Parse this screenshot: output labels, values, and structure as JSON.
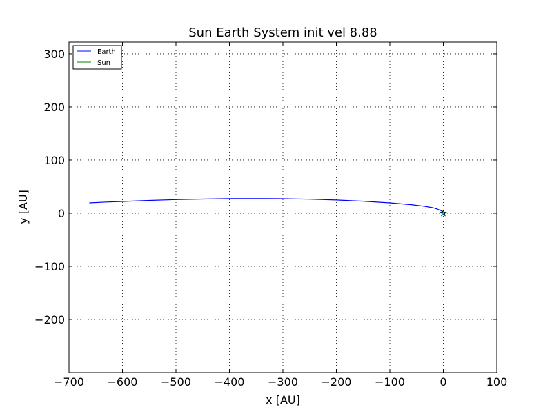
{
  "chart_data": {
    "type": "line",
    "title": "Sun Earth System init vel 8.88",
    "xlabel": "x [AU]",
    "ylabel": "y [AU]",
    "xlim": [
      -700,
      100
    ],
    "ylim": [
      -300,
      322
    ],
    "x_ticks": [
      -700,
      -600,
      -500,
      -400,
      -300,
      -200,
      -100,
      0,
      100
    ],
    "x_tick_labels": [
      "−700",
      "−600",
      "−500",
      "−400",
      "−300",
      "−200",
      "−100",
      "0",
      "100"
    ],
    "y_ticks": [
      -200,
      -100,
      0,
      100,
      200,
      300
    ],
    "y_tick_labels": [
      "−200",
      "−100",
      "0",
      "100",
      "200",
      "300"
    ],
    "grid": true,
    "legend_position": "top-left",
    "series": [
      {
        "name": "Earth",
        "color": "#0000ff",
        "x": [
          0,
          -5,
          -12,
          -20,
          -35,
          -60,
          -100,
          -150,
          -200,
          -250,
          -300,
          -350,
          -400,
          -450,
          -500,
          -550,
          -600,
          -630,
          -662
        ],
        "y": [
          2,
          5,
          8,
          10.5,
          13,
          16,
          19.5,
          22.5,
          24.8,
          26.3,
          27.2,
          27.5,
          27.3,
          26.6,
          25.5,
          24,
          22,
          21,
          19.5
        ]
      },
      {
        "name": "Sun",
        "color": "#008000",
        "marker": "star",
        "x": [
          0
        ],
        "y": [
          0
        ]
      }
    ]
  }
}
